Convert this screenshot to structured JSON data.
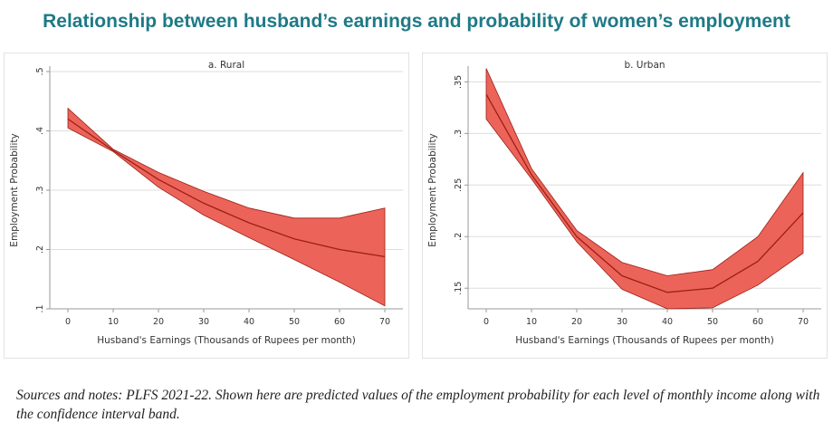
{
  "title": "Relationship between husband’s earnings and probability of women’s employment",
  "note": "Sources and notes: PLFS 2021-22. Shown here are predicted values of the employment probability for each level of monthly income along with the confidence interval band.",
  "colors": {
    "title": "#1e7a86",
    "band": "#ec6459",
    "line": "#9c1f17",
    "grid": "#dddddd",
    "axis": "#9a9a9a",
    "text": "#333333"
  },
  "chart_data": [
    {
      "type": "line",
      "title": "a. Rural",
      "xlabel": "Husband's Earnings (Thousands of Rupees per month)",
      "ylabel": "Employment Probability",
      "xlim": [
        0,
        70
      ],
      "ylim": [
        0.1,
        0.5
      ],
      "xticks": [
        "0",
        "10",
        "20",
        "30",
        "40",
        "50",
        "60",
        "70"
      ],
      "yticks": [
        ".1",
        ".2",
        ".3",
        ".4",
        ".5"
      ],
      "ytick_values": [
        0.1,
        0.2,
        0.3,
        0.4,
        0.5
      ],
      "grid": true,
      "series": [
        {
          "x": [
            0,
            10,
            20,
            30,
            40,
            50,
            60,
            70
          ],
          "y": [
            0.42,
            0.367,
            0.318,
            0.278,
            0.245,
            0.218,
            0.2,
            0.188
          ],
          "lower": [
            0.405,
            0.365,
            0.305,
            0.258,
            0.22,
            0.183,
            0.145,
            0.105
          ],
          "upper": [
            0.438,
            0.369,
            0.33,
            0.298,
            0.27,
            0.253,
            0.253,
            0.27
          ]
        }
      ]
    },
    {
      "type": "line",
      "title": "b. Urban",
      "xlabel": "Husband's Earnings (Thousands of Rupees per month)",
      "ylabel": "Employment Probability",
      "xlim": [
        0,
        70
      ],
      "ylim": [
        0.13,
        0.36
      ],
      "xticks": [
        "0",
        "10",
        "20",
        "30",
        "40",
        "50",
        "60",
        "70"
      ],
      "yticks": [
        ".15",
        ".2",
        ".25",
        ".3",
        ".35"
      ],
      "ytick_values": [
        0.15,
        0.2,
        0.25,
        0.3,
        0.35
      ],
      "grid": true,
      "series": [
        {
          "x": [
            0,
            10,
            20,
            30,
            40,
            50,
            60,
            70
          ],
          "y": [
            0.338,
            0.26,
            0.2,
            0.162,
            0.146,
            0.15,
            0.176,
            0.223
          ],
          "lower": [
            0.314,
            0.256,
            0.195,
            0.149,
            0.13,
            0.131,
            0.153,
            0.184
          ],
          "upper": [
            0.363,
            0.266,
            0.206,
            0.175,
            0.162,
            0.168,
            0.2,
            0.262
          ]
        }
      ]
    }
  ]
}
